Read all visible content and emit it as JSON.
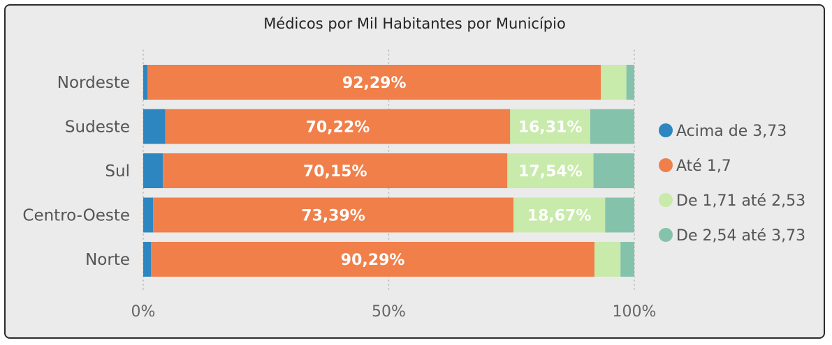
{
  "chart_data": {
    "type": "bar",
    "orientation": "horizontal",
    "stacked": "100%",
    "title": "Médicos por Mil Habitantes por Município",
    "categories": [
      "Nordeste",
      "Sudeste",
      "Sul",
      "Centro-Oeste",
      "Norte"
    ],
    "series": [
      {
        "name": "Acima de 3,73",
        "color": "#2e86c1",
        "values": [
          0.9,
          4.5,
          4.0,
          2.0,
          1.6
        ]
      },
      {
        "name": "Até 1,7",
        "color": "#f07f4a",
        "values": [
          92.29,
          70.22,
          70.15,
          73.39,
          90.29
        ]
      },
      {
        "name": "De 1,71 até 2,53",
        "color": "#c8eaab",
        "values": [
          5.2,
          16.31,
          17.54,
          18.67,
          5.3
        ]
      },
      {
        "name": "De 2,54 até 3,73",
        "color": "#84c2ac",
        "values": [
          1.61,
          8.97,
          8.31,
          5.94,
          2.81
        ]
      }
    ],
    "data_labels": [
      [
        "",
        "92,29%",
        "",
        ""
      ],
      [
        "",
        "70,22%",
        "16,31%",
        ""
      ],
      [
        "",
        "70,15%",
        "17,54%",
        ""
      ],
      [
        "",
        "73,39%",
        "18,67%",
        ""
      ],
      [
        "",
        "90,29%",
        "",
        ""
      ]
    ],
    "x_ticks": [
      "0%",
      "50%",
      "100%"
    ],
    "xlim": [
      0,
      100
    ],
    "grid": "vertical dotted",
    "legend_position": "right"
  }
}
